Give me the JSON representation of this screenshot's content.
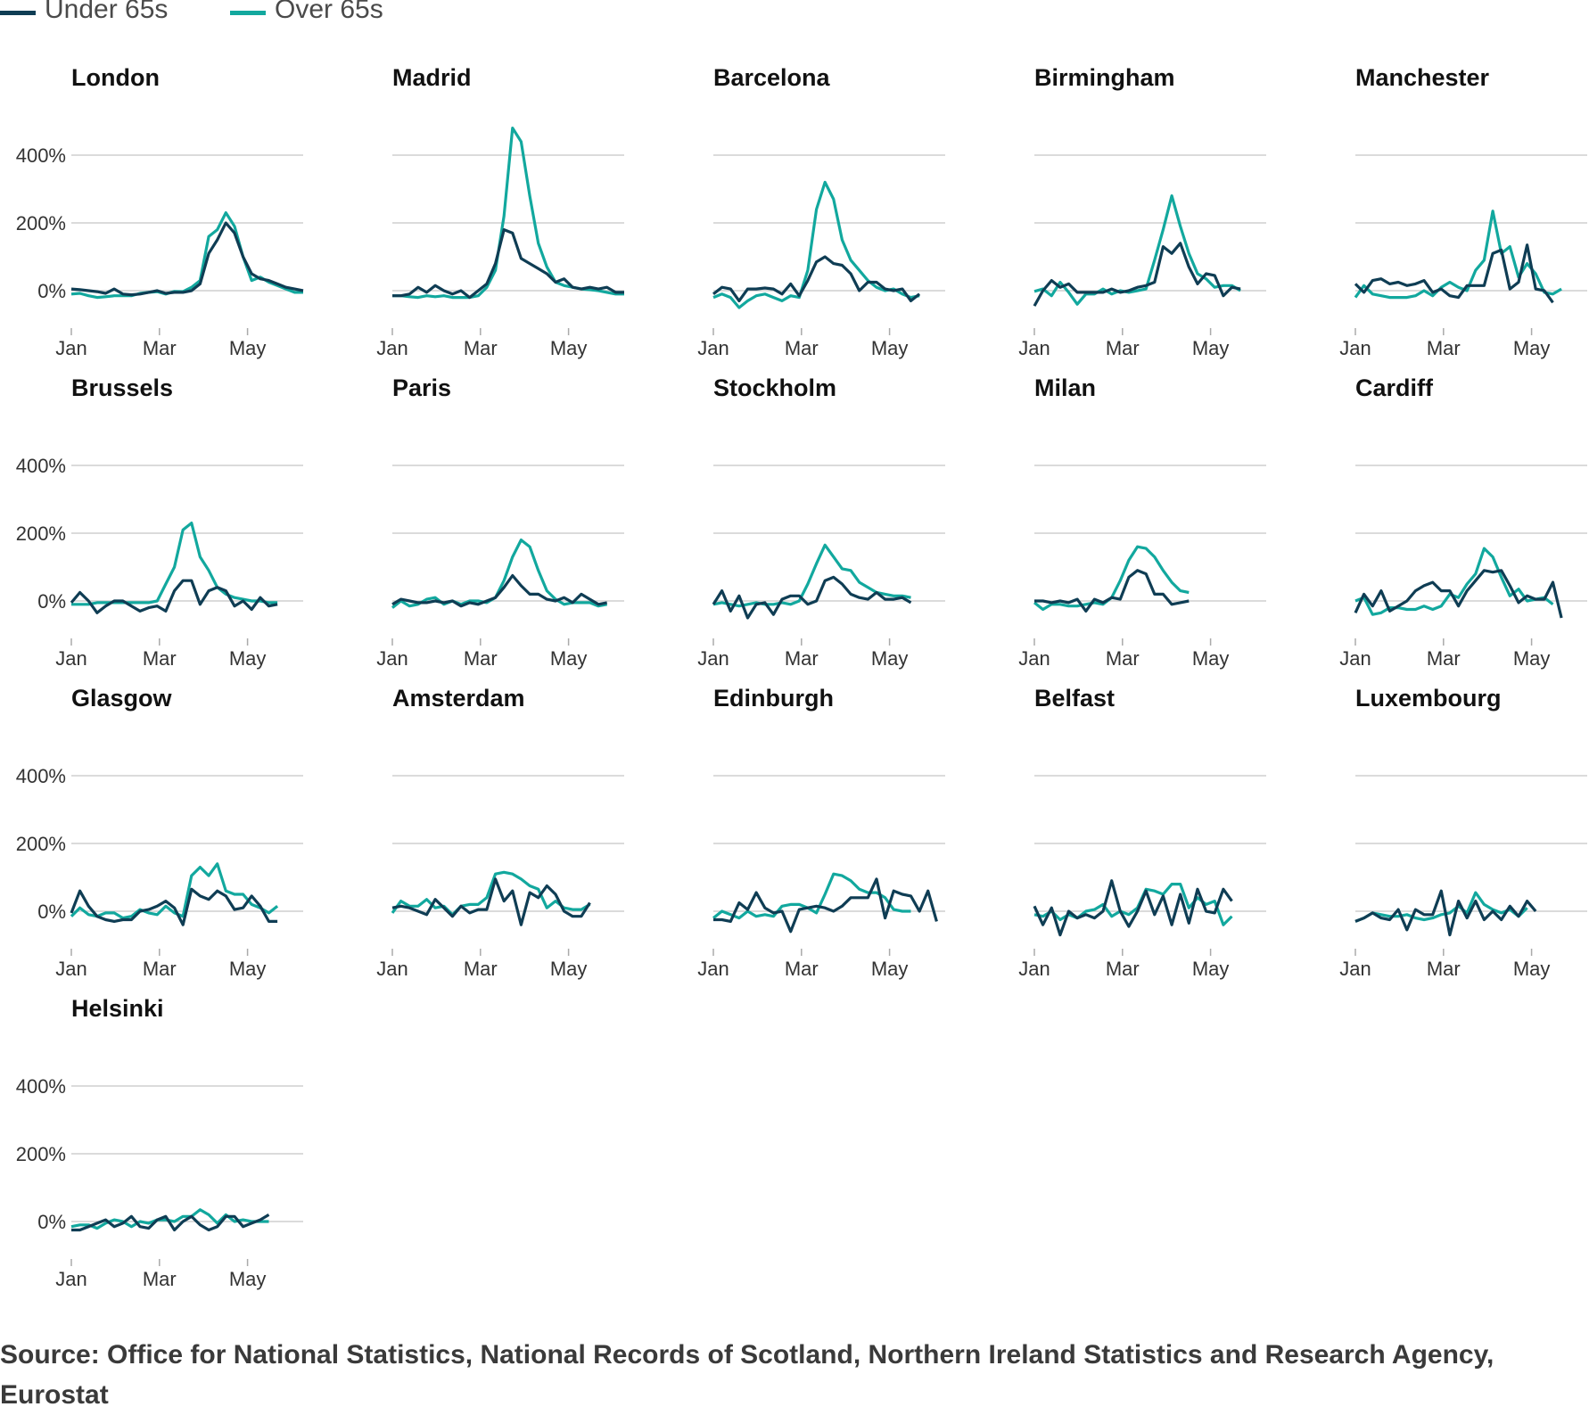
{
  "chart_data": {
    "type": "line",
    "title": "",
    "xlabel": "",
    "ylabel": "",
    "x_ticks": [
      "Jan",
      "Mar",
      "May"
    ],
    "y_ticks": [
      "0%",
      "200%",
      "400%"
    ],
    "ylim": [
      -50,
      500
    ],
    "grid": true,
    "legend_position": "top-left",
    "series_names": [
      "Under 65s",
      "Over 65s"
    ],
    "series_colors": [
      "#0f3d54",
      "#12a89e"
    ],
    "panels": [
      {
        "city": "London",
        "under": [
          5,
          3,
          0,
          -3,
          -8,
          5,
          -10,
          -12,
          -10,
          -5,
          0,
          -8,
          -5,
          -5,
          0,
          20,
          110,
          150,
          200,
          170,
          100,
          50,
          35,
          30,
          20,
          10,
          5,
          0
        ],
        "over": [
          -10,
          -8,
          -15,
          -20,
          -18,
          -15,
          -15,
          -15,
          -8,
          -5,
          -3,
          -10,
          -2,
          -3,
          10,
          30,
          160,
          180,
          230,
          190,
          100,
          30,
          40,
          25,
          15,
          5,
          -5,
          -5
        ]
      },
      {
        "city": "Madrid",
        "under": [
          -15,
          -15,
          -10,
          10,
          -5,
          15,
          0,
          -10,
          0,
          -20,
          0,
          20,
          80,
          180,
          170,
          95,
          80,
          65,
          50,
          25,
          35,
          10,
          5,
          10,
          5,
          10,
          -5,
          -5
        ],
        "over": [
          -15,
          -15,
          -18,
          -20,
          -15,
          -18,
          -15,
          -20,
          -20,
          -20,
          -15,
          10,
          60,
          220,
          480,
          440,
          280,
          140,
          70,
          25,
          15,
          10,
          5,
          3,
          0,
          -5,
          -10,
          -10
        ]
      },
      {
        "city": "Barcelona",
        "under": [
          -10,
          10,
          5,
          -30,
          5,
          5,
          8,
          5,
          -10,
          20,
          -15,
          30,
          85,
          100,
          80,
          75,
          50,
          0,
          25,
          25,
          5,
          0,
          5,
          -30,
          -10
        ],
        "over": [
          -20,
          -10,
          -20,
          -50,
          -30,
          -15,
          -10,
          -20,
          -30,
          -15,
          -20,
          60,
          240,
          320,
          270,
          150,
          90,
          60,
          30,
          10,
          0,
          5,
          -10,
          -20,
          -15
        ]
      },
      {
        "city": "Birmingham",
        "under": [
          -45,
          0,
          30,
          10,
          20,
          -5,
          -5,
          -5,
          -5,
          5,
          -5,
          0,
          10,
          15,
          25,
          130,
          110,
          140,
          70,
          20,
          50,
          45,
          -15,
          10,
          5
        ],
        "over": [
          -2,
          5,
          -15,
          25,
          -5,
          -40,
          -10,
          -10,
          5,
          -10,
          0,
          -5,
          0,
          5,
          90,
          180,
          280,
          190,
          110,
          50,
          35,
          10,
          15,
          15,
          0
        ]
      },
      {
        "city": "Manchester",
        "under": [
          20,
          -5,
          30,
          35,
          20,
          25,
          15,
          20,
          30,
          -5,
          5,
          -15,
          -20,
          15,
          15,
          15,
          110,
          120,
          5,
          25,
          135,
          5,
          0,
          -35
        ],
        "over": [
          -20,
          15,
          -10,
          -15,
          -20,
          -20,
          -20,
          -15,
          0,
          -15,
          10,
          25,
          10,
          0,
          60,
          90,
          235,
          110,
          130,
          40,
          80,
          50,
          -5,
          -10,
          5
        ]
      },
      {
        "city": "Brussels",
        "under": [
          -5,
          25,
          0,
          -35,
          -15,
          0,
          0,
          -15,
          -30,
          -20,
          -15,
          -30,
          30,
          60,
          60,
          -10,
          30,
          40,
          30,
          -15,
          0,
          -25,
          10,
          -15,
          -10
        ],
        "over": [
          -10,
          -10,
          -10,
          -5,
          -5,
          -5,
          -5,
          -5,
          -5,
          -5,
          0,
          50,
          100,
          210,
          230,
          130,
          90,
          40,
          20,
          10,
          5,
          0,
          0,
          -5,
          -5
        ]
      },
      {
        "city": "Paris",
        "under": [
          -10,
          5,
          0,
          -5,
          -5,
          0,
          -5,
          0,
          -15,
          -5,
          -10,
          0,
          10,
          40,
          75,
          45,
          20,
          20,
          5,
          0,
          10,
          -5,
          20,
          5,
          -10,
          -5
        ],
        "over": [
          -20,
          0,
          -15,
          -10,
          5,
          10,
          -10,
          0,
          -10,
          0,
          0,
          -5,
          10,
          60,
          130,
          180,
          160,
          90,
          30,
          5,
          -10,
          -5,
          -5,
          -5,
          -15,
          -10
        ]
      },
      {
        "city": "Stockholm",
        "under": [
          -10,
          30,
          -30,
          15,
          -50,
          -10,
          -5,
          -40,
          5,
          15,
          15,
          -10,
          0,
          60,
          70,
          50,
          20,
          10,
          5,
          25,
          5,
          5,
          10,
          -5
        ],
        "over": [
          -10,
          -5,
          -10,
          -15,
          -10,
          -5,
          -10,
          -10,
          -5,
          -10,
          0,
          50,
          110,
          165,
          130,
          95,
          90,
          55,
          40,
          25,
          20,
          15,
          15,
          10
        ]
      },
      {
        "city": "Milan",
        "under": [
          0,
          0,
          -5,
          0,
          -5,
          5,
          -30,
          5,
          -5,
          10,
          5,
          70,
          90,
          80,
          20,
          20,
          -10,
          -5,
          0
        ],
        "over": [
          -5,
          -25,
          -10,
          -10,
          -15,
          -15,
          -10,
          -5,
          -10,
          10,
          60,
          120,
          160,
          155,
          130,
          90,
          55,
          30,
          25
        ]
      },
      {
        "city": "Cardiff",
        "under": [
          -35,
          20,
          -15,
          30,
          -30,
          -15,
          0,
          30,
          45,
          55,
          30,
          30,
          -15,
          30,
          60,
          90,
          85,
          90,
          45,
          -5,
          15,
          5,
          5,
          55,
          -50
        ],
        "over": [
          0,
          10,
          -40,
          -35,
          -20,
          -20,
          -25,
          -25,
          -15,
          -25,
          -15,
          20,
          10,
          50,
          80,
          155,
          130,
          70,
          15,
          35,
          0,
          5,
          10,
          -10
        ]
      },
      {
        "city": "Glasgow",
        "under": [
          -5,
          60,
          15,
          -15,
          -25,
          -30,
          -25,
          -25,
          0,
          5,
          15,
          30,
          10,
          -40,
          65,
          45,
          35,
          60,
          45,
          5,
          10,
          45,
          15,
          -30,
          -30
        ],
        "over": [
          -15,
          10,
          -10,
          -15,
          -5,
          -5,
          -20,
          -15,
          5,
          -5,
          -10,
          15,
          -5,
          -15,
          105,
          130,
          105,
          140,
          60,
          50,
          50,
          20,
          10,
          -5,
          15
        ]
      },
      {
        "city": "Amsterdam",
        "under": [
          10,
          15,
          10,
          0,
          -10,
          35,
          10,
          -15,
          15,
          -5,
          5,
          5,
          95,
          30,
          60,
          -40,
          55,
          40,
          75,
          50,
          0,
          -15,
          -15,
          25
        ],
        "over": [
          -5,
          30,
          15,
          15,
          35,
          10,
          15,
          -10,
          15,
          20,
          20,
          40,
          110,
          115,
          110,
          95,
          75,
          65,
          10,
          30,
          10,
          5,
          5,
          20
        ]
      },
      {
        "city": "Edinburgh",
        "under": [
          -25,
          -25,
          -30,
          25,
          5,
          55,
          10,
          -5,
          0,
          -60,
          5,
          10,
          15,
          10,
          0,
          15,
          40,
          40,
          40,
          95,
          -20,
          60,
          50,
          45,
          0,
          60,
          -30
        ],
        "over": [
          -20,
          0,
          -10,
          -20,
          0,
          -15,
          -10,
          -15,
          15,
          20,
          20,
          10,
          -5,
          50,
          110,
          105,
          90,
          65,
          55,
          55,
          40,
          5,
          0,
          0
        ]
      },
      {
        "city": "Belfast",
        "under": [
          15,
          -40,
          10,
          -70,
          0,
          -20,
          -10,
          -20,
          0,
          90,
          0,
          -45,
          0,
          60,
          -10,
          45,
          -40,
          50,
          -35,
          65,
          0,
          -5,
          65,
          30
        ],
        "over": [
          -10,
          -15,
          0,
          -25,
          -10,
          -20,
          0,
          5,
          20,
          -15,
          0,
          -10,
          10,
          65,
          60,
          50,
          80,
          80,
          10,
          40,
          20,
          30,
          -40,
          -15
        ]
      },
      {
        "city": "Luxembourg",
        "under": [
          -30,
          -20,
          -5,
          -20,
          -25,
          5,
          -55,
          5,
          -10,
          -10,
          60,
          -70,
          30,
          -20,
          30,
          -25,
          0,
          -25,
          15,
          -15,
          30,
          0
        ],
        "over": [
          -30,
          -20,
          -5,
          -10,
          -15,
          -15,
          -10,
          -20,
          -25,
          -20,
          -10,
          -5,
          15,
          -5,
          55,
          20,
          5,
          -5,
          5,
          -15,
          10
        ]
      },
      {
        "city": "Helsinki",
        "under": [
          -25,
          -25,
          -15,
          -5,
          5,
          -15,
          -5,
          15,
          -15,
          -20,
          5,
          15,
          -25,
          0,
          15,
          -10,
          -25,
          -15,
          15,
          15,
          -15,
          -5,
          5,
          20
        ],
        "over": [
          -15,
          -10,
          -10,
          -20,
          -5,
          5,
          0,
          -15,
          0,
          -5,
          5,
          5,
          0,
          15,
          15,
          35,
          20,
          -5,
          20,
          0,
          5,
          0,
          0,
          0
        ]
      }
    ]
  },
  "source": "Source: Office for National Statistics, National Records of Scotland, Northern Ireland Statistics and Research Agency, Eurostat"
}
